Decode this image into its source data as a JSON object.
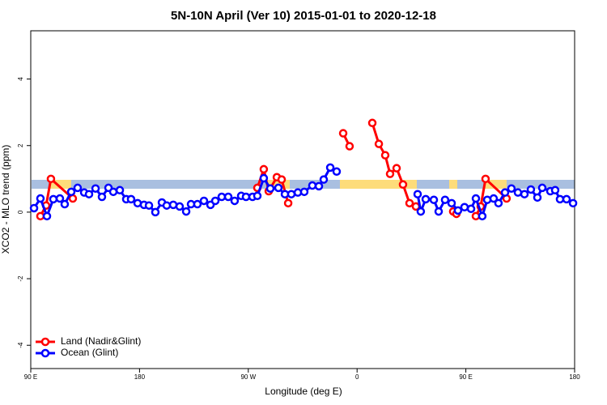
{
  "chart_data": {
    "type": "line",
    "title": "5N-10N April (Ver 10)   2015-01-01 to 2020-12-18",
    "xlabel": "Longitude (deg E)",
    "ylabel": "XCO2 - MLO trend (ppm)",
    "xlim": [
      90,
      540
    ],
    "ylim": [
      -4.7,
      5.45
    ],
    "xticks": [
      {
        "value": 90,
        "label": "90 E"
      },
      180,
      {
        "value": 270,
        "label": "90 W"
      },
      {
        "value": 360,
        "label": "0"
      },
      {
        "value": 450,
        "label": "90 E"
      },
      {
        "value": 540,
        "label": "180"
      }
    ],
    "yticks": [
      -4,
      -2,
      0,
      2,
      4
    ],
    "legend": "bottom-left",
    "series": [
      {
        "name": "Land (Nadir&Glint)",
        "color": "#ff0000",
        "x": [
          98.0,
          102.7,
          106.7,
          124.8,
          null,
          277.5,
          282.8,
          286.9,
          293.6,
          297.6,
          303.0,
          null,
          348.5,
          353.8,
          null,
          372.6,
          378.0,
          383.3,
          387.3,
          392.7,
          398.0,
          403.4,
          408.7,
          null,
          439.5,
          442.2,
          null,
          458.3,
          462.3,
          466.3,
          483.7
        ],
        "values": [
          -0.12,
          0.2,
          1.0,
          0.41,
          null,
          0.73,
          1.29,
          0.63,
          1.05,
          0.98,
          0.27,
          null,
          2.37,
          1.98,
          null,
          2.68,
          2.05,
          1.71,
          1.15,
          1.32,
          0.83,
          0.27,
          0.17,
          null,
          0.02,
          -0.05,
          null,
          -0.12,
          0.17,
          1.0,
          0.41
        ]
      },
      {
        "name": "Ocean (Glint)",
        "color": "#0000ff",
        "x": [
          92.7,
          98.0,
          103.4,
          108.7,
          114.1,
          118.1,
          123.5,
          128.8,
          134.2,
          138.2,
          143.6,
          148.9,
          154.3,
          158.3,
          163.7,
          169.0,
          173.0,
          178.4,
          183.7,
          187.8,
          193.1,
          198.5,
          202.5,
          207.9,
          213.2,
          218.6,
          222.6,
          227.9,
          233.3,
          238.7,
          242.7,
          248.0,
          253.4,
          258.7,
          264.1,
          268.1,
          273.5,
          277.5,
          282.8,
          288.2,
          294.9,
          300.3,
          305.6,
          311.0,
          316.3,
          323.0,
          328.4,
          332.4,
          337.8,
          343.1,
          null,
          410.1,
          412.7,
          416.8,
          423.5,
          427.5,
          432.8,
          438.2,
          443.5,
          448.9,
          454.3,
          458.3,
          463.6,
          467.7,
          473.0,
          477.0,
          482.4,
          487.7,
          493.1,
          498.5,
          503.8,
          509.2,
          513.2,
          519.9,
          523.9,
          527.9,
          533.3,
          538.7
        ],
        "values": [
          0.12,
          0.41,
          -0.12,
          0.39,
          0.41,
          0.24,
          0.61,
          0.73,
          0.59,
          0.54,
          0.71,
          0.46,
          0.73,
          0.61,
          0.66,
          0.39,
          0.39,
          0.27,
          0.22,
          0.2,
          0.0,
          0.29,
          0.2,
          0.22,
          0.17,
          0.02,
          0.24,
          0.24,
          0.34,
          0.22,
          0.34,
          0.46,
          0.46,
          0.34,
          0.49,
          0.46,
          0.46,
          0.49,
          1.02,
          0.71,
          0.73,
          0.54,
          0.54,
          0.59,
          0.61,
          0.8,
          0.78,
          0.98,
          1.34,
          1.22,
          null,
          0.54,
          0.02,
          0.39,
          0.37,
          0.02,
          0.37,
          0.27,
          0.05,
          0.15,
          0.1,
          0.41,
          -0.12,
          0.37,
          0.41,
          0.27,
          0.59,
          0.71,
          0.59,
          0.54,
          0.68,
          0.44,
          0.73,
          0.63,
          0.66,
          0.39,
          0.39,
          0.27
        ]
      }
    ]
  }
}
